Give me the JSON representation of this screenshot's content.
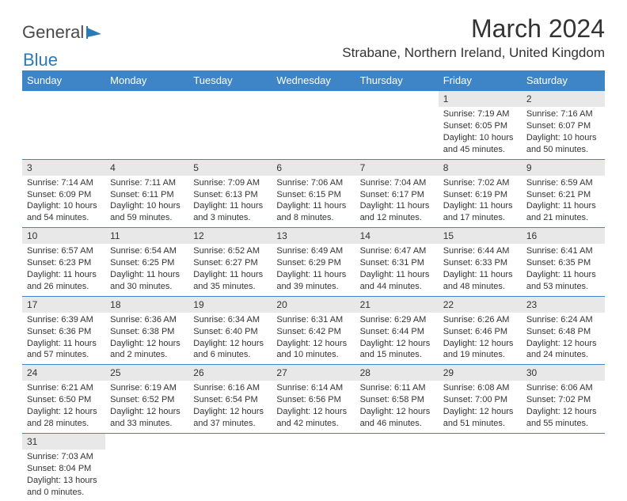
{
  "logo": {
    "part1": "General",
    "part2": "Blue"
  },
  "title": "March 2024",
  "location": "Strabane, Northern Ireland, United Kingdom",
  "colors": {
    "header_bg": "#3d85c6",
    "header_fg": "#ffffff",
    "daynum_bg": "#e8e8e8",
    "border": "#3d85c6",
    "text": "#333333",
    "background": "#ffffff"
  },
  "weekdays": [
    "Sunday",
    "Monday",
    "Tuesday",
    "Wednesday",
    "Thursday",
    "Friday",
    "Saturday"
  ],
  "weeks": [
    [
      null,
      null,
      null,
      null,
      null,
      {
        "n": "1",
        "sr": "7:19 AM",
        "ss": "6:05 PM",
        "dl": "10 hours and 45 minutes."
      },
      {
        "n": "2",
        "sr": "7:16 AM",
        "ss": "6:07 PM",
        "dl": "10 hours and 50 minutes."
      }
    ],
    [
      {
        "n": "3",
        "sr": "7:14 AM",
        "ss": "6:09 PM",
        "dl": "10 hours and 54 minutes."
      },
      {
        "n": "4",
        "sr": "7:11 AM",
        "ss": "6:11 PM",
        "dl": "10 hours and 59 minutes."
      },
      {
        "n": "5",
        "sr": "7:09 AM",
        "ss": "6:13 PM",
        "dl": "11 hours and 3 minutes."
      },
      {
        "n": "6",
        "sr": "7:06 AM",
        "ss": "6:15 PM",
        "dl": "11 hours and 8 minutes."
      },
      {
        "n": "7",
        "sr": "7:04 AM",
        "ss": "6:17 PM",
        "dl": "11 hours and 12 minutes."
      },
      {
        "n": "8",
        "sr": "7:02 AM",
        "ss": "6:19 PM",
        "dl": "11 hours and 17 minutes."
      },
      {
        "n": "9",
        "sr": "6:59 AM",
        "ss": "6:21 PM",
        "dl": "11 hours and 21 minutes."
      }
    ],
    [
      {
        "n": "10",
        "sr": "6:57 AM",
        "ss": "6:23 PM",
        "dl": "11 hours and 26 minutes."
      },
      {
        "n": "11",
        "sr": "6:54 AM",
        "ss": "6:25 PM",
        "dl": "11 hours and 30 minutes."
      },
      {
        "n": "12",
        "sr": "6:52 AM",
        "ss": "6:27 PM",
        "dl": "11 hours and 35 minutes."
      },
      {
        "n": "13",
        "sr": "6:49 AM",
        "ss": "6:29 PM",
        "dl": "11 hours and 39 minutes."
      },
      {
        "n": "14",
        "sr": "6:47 AM",
        "ss": "6:31 PM",
        "dl": "11 hours and 44 minutes."
      },
      {
        "n": "15",
        "sr": "6:44 AM",
        "ss": "6:33 PM",
        "dl": "11 hours and 48 minutes."
      },
      {
        "n": "16",
        "sr": "6:41 AM",
        "ss": "6:35 PM",
        "dl": "11 hours and 53 minutes."
      }
    ],
    [
      {
        "n": "17",
        "sr": "6:39 AM",
        "ss": "6:36 PM",
        "dl": "11 hours and 57 minutes."
      },
      {
        "n": "18",
        "sr": "6:36 AM",
        "ss": "6:38 PM",
        "dl": "12 hours and 2 minutes."
      },
      {
        "n": "19",
        "sr": "6:34 AM",
        "ss": "6:40 PM",
        "dl": "12 hours and 6 minutes."
      },
      {
        "n": "20",
        "sr": "6:31 AM",
        "ss": "6:42 PM",
        "dl": "12 hours and 10 minutes."
      },
      {
        "n": "21",
        "sr": "6:29 AM",
        "ss": "6:44 PM",
        "dl": "12 hours and 15 minutes."
      },
      {
        "n": "22",
        "sr": "6:26 AM",
        "ss": "6:46 PM",
        "dl": "12 hours and 19 minutes."
      },
      {
        "n": "23",
        "sr": "6:24 AM",
        "ss": "6:48 PM",
        "dl": "12 hours and 24 minutes."
      }
    ],
    [
      {
        "n": "24",
        "sr": "6:21 AM",
        "ss": "6:50 PM",
        "dl": "12 hours and 28 minutes."
      },
      {
        "n": "25",
        "sr": "6:19 AM",
        "ss": "6:52 PM",
        "dl": "12 hours and 33 minutes."
      },
      {
        "n": "26",
        "sr": "6:16 AM",
        "ss": "6:54 PM",
        "dl": "12 hours and 37 minutes."
      },
      {
        "n": "27",
        "sr": "6:14 AM",
        "ss": "6:56 PM",
        "dl": "12 hours and 42 minutes."
      },
      {
        "n": "28",
        "sr": "6:11 AM",
        "ss": "6:58 PM",
        "dl": "12 hours and 46 minutes."
      },
      {
        "n": "29",
        "sr": "6:08 AM",
        "ss": "7:00 PM",
        "dl": "12 hours and 51 minutes."
      },
      {
        "n": "30",
        "sr": "6:06 AM",
        "ss": "7:02 PM",
        "dl": "12 hours and 55 minutes."
      }
    ],
    [
      {
        "n": "31",
        "sr": "7:03 AM",
        "ss": "8:04 PM",
        "dl": "13 hours and 0 minutes."
      },
      null,
      null,
      null,
      null,
      null,
      null
    ]
  ],
  "labels": {
    "sunrise": "Sunrise:",
    "sunset": "Sunset:",
    "daylight": "Daylight:"
  }
}
